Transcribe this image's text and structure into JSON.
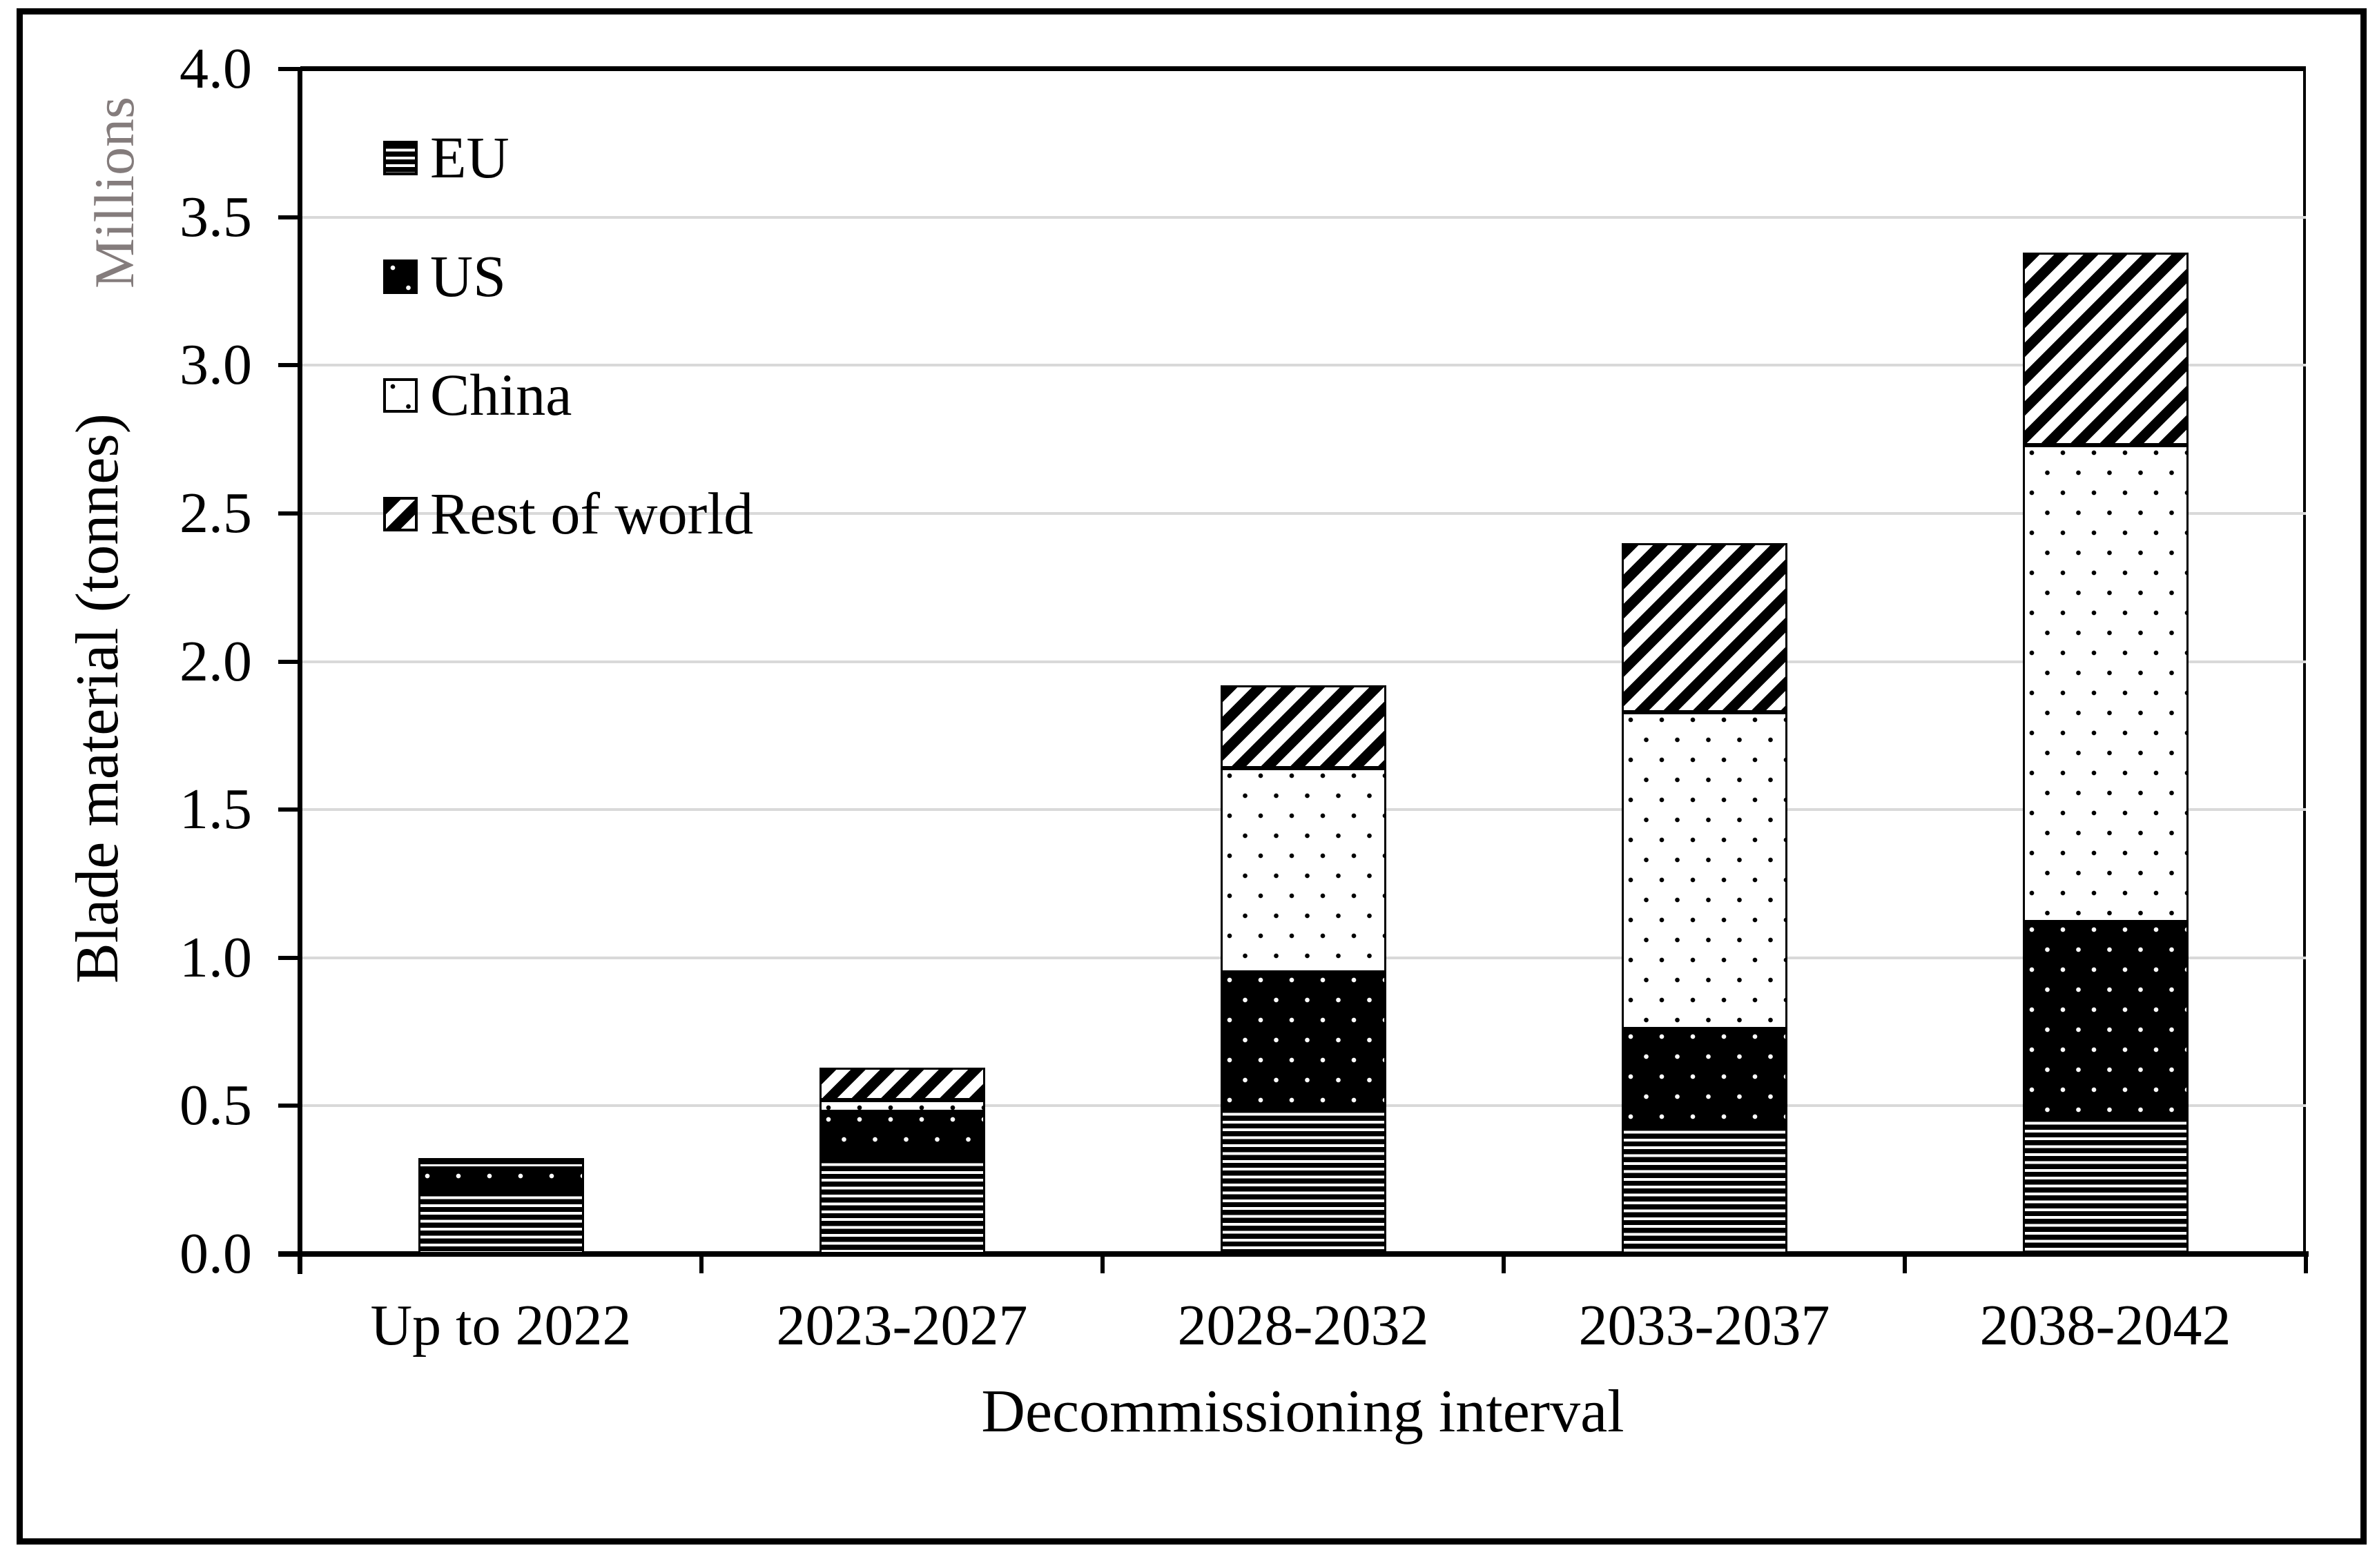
{
  "chart_data": {
    "type": "bar",
    "stacked": true,
    "xlabel": "Decommissioning interval",
    "ylabel": "Blade material (tonnes)",
    "y_unit_label": "Millions",
    "categories": [
      "Up to 2022",
      "2023-2027",
      "2028-2032",
      "2033-2037",
      "2038-2042"
    ],
    "series": [
      {
        "name": "EU",
        "pattern": "horizontal-stripes",
        "values": [
          0.22,
          0.33,
          0.5,
          0.44,
          0.47
        ]
      },
      {
        "name": "US",
        "pattern": "black-with-white-dots",
        "values": [
          0.07,
          0.15,
          0.45,
          0.32,
          0.65
        ]
      },
      {
        "name": "China",
        "pattern": "white-with-black-dots",
        "values": [
          0.02,
          0.04,
          0.69,
          1.07,
          1.61
        ]
      },
      {
        "name": "Rest of world",
        "pattern": "diagonal-stripes",
        "values": [
          0.01,
          0.11,
          0.28,
          0.57,
          0.65
        ]
      }
    ],
    "totals": [
      0.32,
      0.63,
      1.92,
      2.4,
      3.38
    ],
    "ylim": [
      0.0,
      4.0
    ],
    "y_tick_step": 0.5,
    "y_ticks": [
      "0.0",
      "0.5",
      "1.0",
      "1.5",
      "2.0",
      "2.5",
      "3.0",
      "3.5",
      "4.0"
    ],
    "grid": true,
    "legend_position": "top-left-inside",
    "colors": {
      "ink": "#000000",
      "gridline": "#d9d9d9",
      "unit_label_gray": "#847c7c",
      "background": "#ffffff"
    }
  }
}
